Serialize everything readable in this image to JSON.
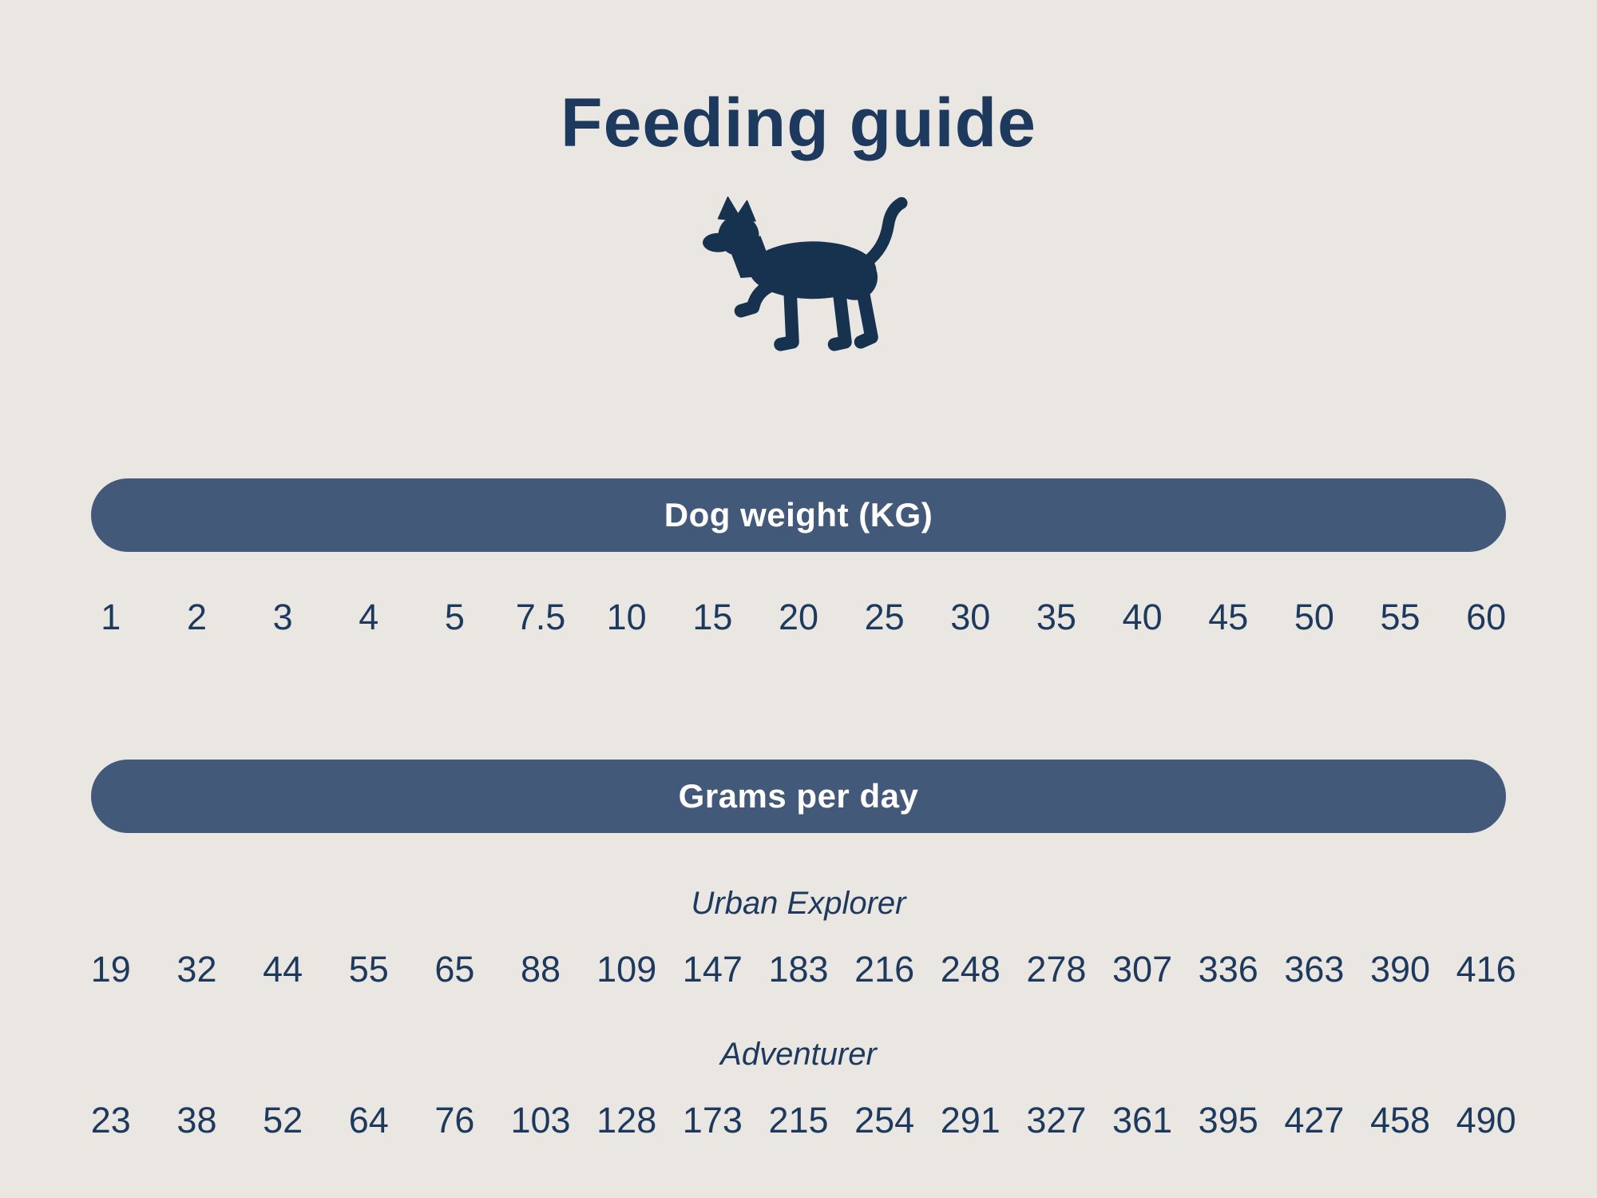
{
  "page": {
    "bg_color": "#eae6e1",
    "navy": "#1d3a5e",
    "pill_color": "#43597a"
  },
  "icons": {
    "dog": "dog-silhouette-icon"
  },
  "chart_data": {
    "type": "table",
    "title": "Feeding guide",
    "weight_header": "Dog weight (KG)",
    "grams_header": "Grams per day",
    "weights_kg": [
      "1",
      "2",
      "3",
      "4",
      "5",
      "7.5",
      "10",
      "15",
      "20",
      "25",
      "30",
      "35",
      "40",
      "45",
      "50",
      "55",
      "60"
    ],
    "series": [
      {
        "name": "Urban Explorer",
        "values": [
          19,
          32,
          44,
          55,
          65,
          88,
          109,
          147,
          183,
          216,
          248,
          278,
          307,
          336,
          363,
          390,
          416
        ]
      },
      {
        "name": "Adventurer",
        "values": [
          23,
          38,
          52,
          64,
          76,
          103,
          128,
          173,
          215,
          254,
          291,
          327,
          361,
          395,
          427,
          458,
          490
        ]
      }
    ]
  }
}
